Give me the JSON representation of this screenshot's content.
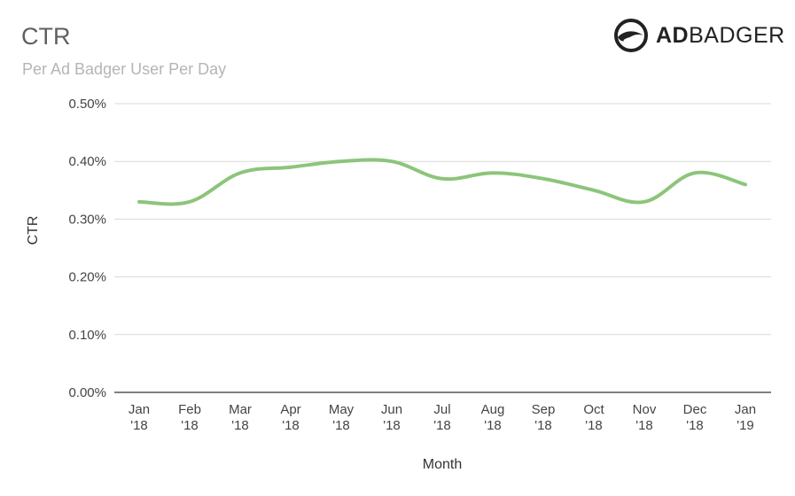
{
  "header": {
    "title": "CTR",
    "subtitle": "Per Ad Badger User Per Day"
  },
  "logo": {
    "icon": "badger-head-icon",
    "text_bold": "AD",
    "text_light": "BADGER"
  },
  "chart_data": {
    "type": "line",
    "categories": [
      [
        "Jan",
        "'18"
      ],
      [
        "Feb",
        "'18"
      ],
      [
        "Mar",
        "'18"
      ],
      [
        "Apr",
        "'18"
      ],
      [
        "May",
        "'18"
      ],
      [
        "Jun",
        "'18"
      ],
      [
        "Jul",
        "'18"
      ],
      [
        "Aug",
        "'18"
      ],
      [
        "Sep",
        "'18"
      ],
      [
        "Oct",
        "'18"
      ],
      [
        "Nov",
        "'18"
      ],
      [
        "Dec",
        "'18"
      ],
      [
        "Jan",
        "'19"
      ]
    ],
    "series": [
      {
        "values": [
          0.33,
          0.33,
          0.38,
          0.39,
          0.4,
          0.4,
          0.37,
          0.38,
          0.37,
          0.35,
          0.33,
          0.38,
          0.36
        ]
      }
    ],
    "ylim": [
      0,
      0.5
    ],
    "yticks": [
      0.0,
      0.1,
      0.2,
      0.3,
      0.4,
      0.5
    ],
    "ytick_labels": [
      "0.00%",
      "0.10%",
      "0.20%",
      "0.30%",
      "0.40%",
      "0.50%"
    ],
    "xlabel": "Month",
    "ylabel": "CTR",
    "grid": true,
    "line_color": "#8cc57a"
  }
}
